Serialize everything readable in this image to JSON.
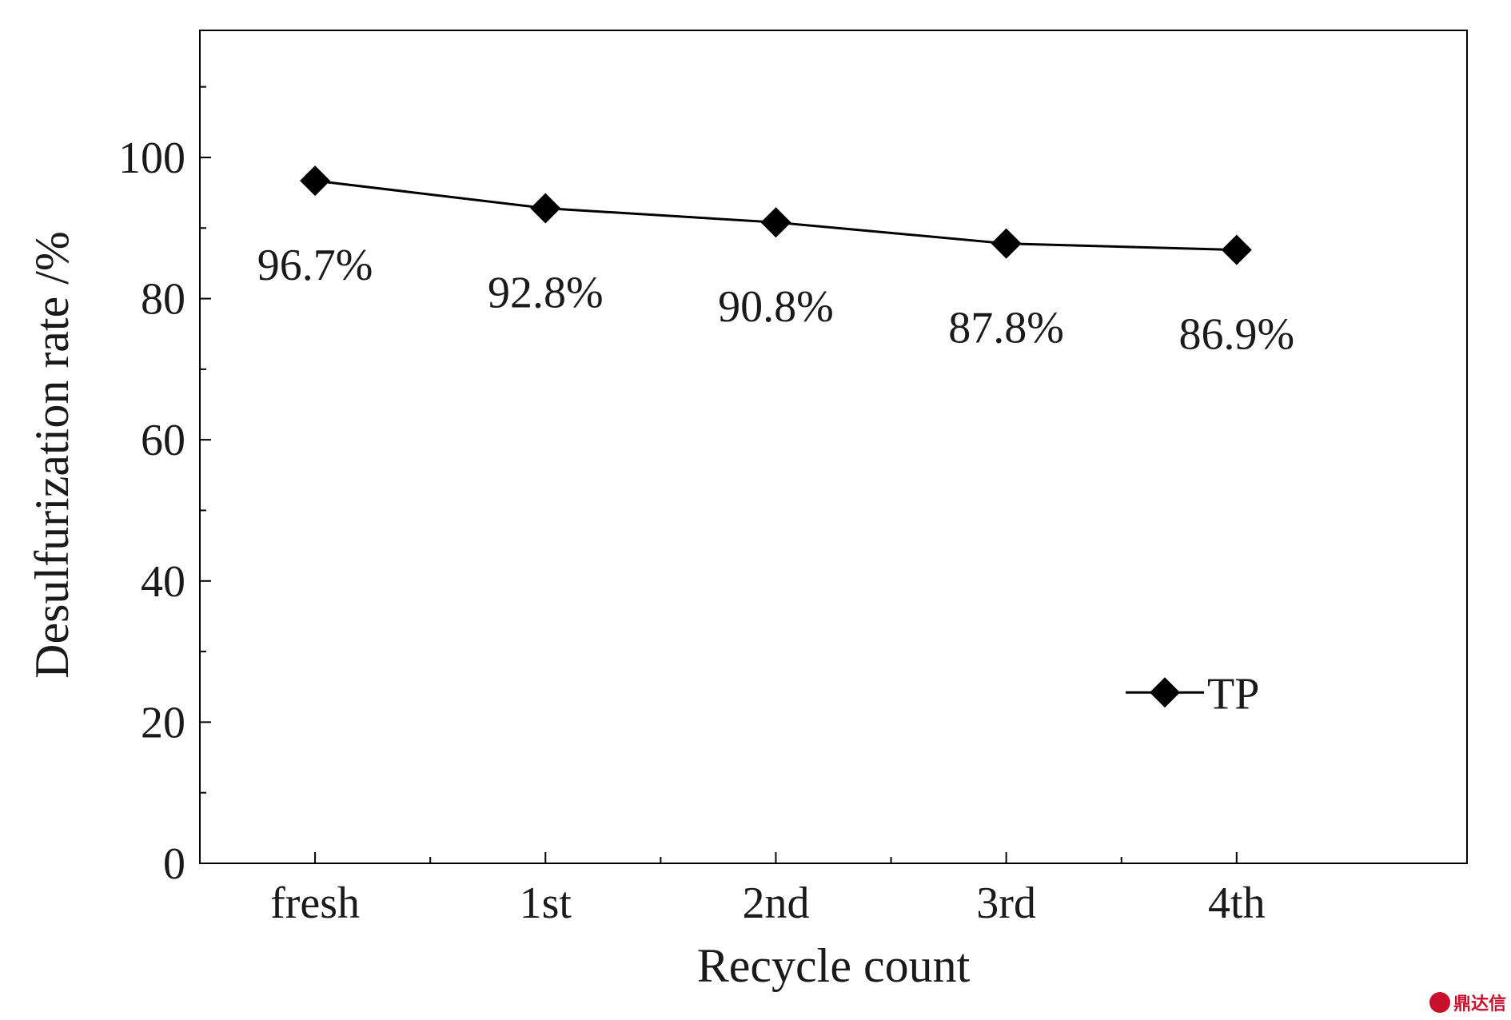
{
  "chart_data": {
    "type": "line",
    "title": "",
    "xlabel": "Recycle count",
    "ylabel": "Desulfurization rate /%",
    "categories": [
      "fresh",
      "1st",
      "2nd",
      "3rd",
      "4th"
    ],
    "series": [
      {
        "name": "TP",
        "values": [
          96.7,
          92.8,
          90.8,
          87.8,
          86.9
        ],
        "labels": [
          "96.7%",
          "92.8%",
          "90.8%",
          "87.8%",
          "86.9%"
        ],
        "color": "#000000",
        "marker": "diamond"
      }
    ],
    "ylim": [
      0,
      118
    ],
    "yticks": [
      0,
      20,
      40,
      60,
      80,
      100
    ],
    "ytick_labels": [
      "0",
      "20",
      "40",
      "60",
      "80",
      "100"
    ],
    "grid": false,
    "legend": "bottom-right"
  },
  "watermark": {
    "text": "鼎达信",
    "color": "#c8102e"
  }
}
